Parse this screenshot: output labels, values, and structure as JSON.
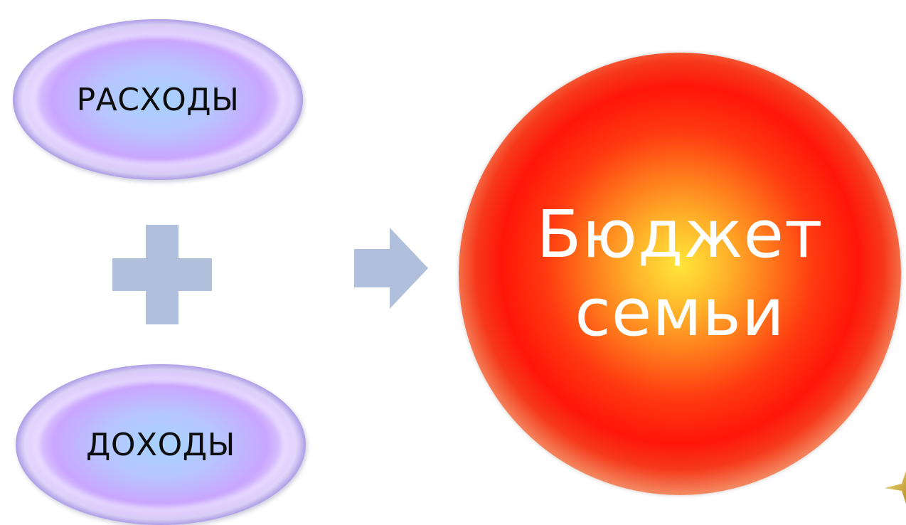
{
  "diagram": {
    "expenses_label": "РАСХОДЫ",
    "income_label": "ДОХОДЫ",
    "result_line1": "Бюджет",
    "result_line2": "семьи",
    "operator_icon": "plus-icon",
    "flow_icon": "arrow-right-icon"
  },
  "colors": {
    "operator": "#b0bfdb",
    "oval_center": "#a6d2ff",
    "oval_edge": "#4b5fd2",
    "circle_center": "#ffe63a",
    "circle_mid": "#ff1608",
    "circle_edge": "#a08f89",
    "circle_text": "#ffffff"
  }
}
